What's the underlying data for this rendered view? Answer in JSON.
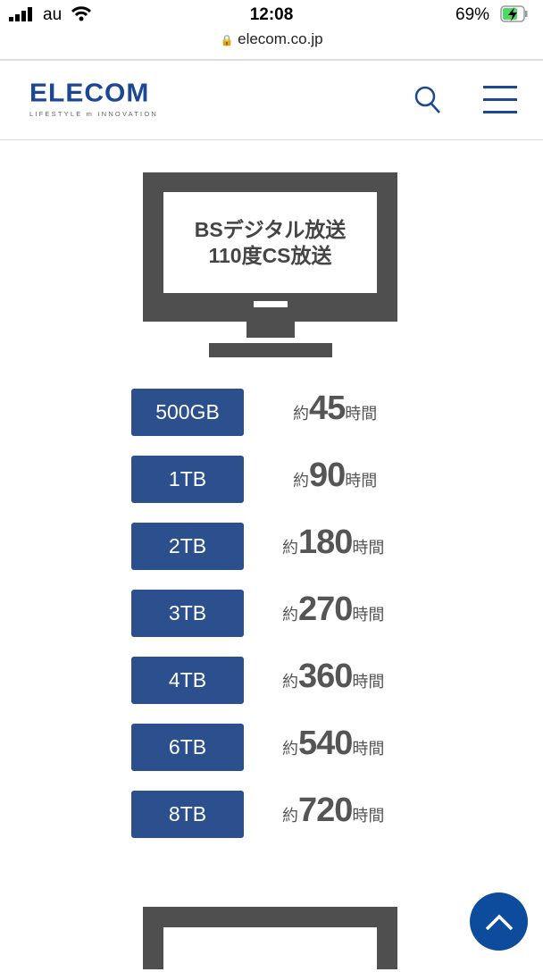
{
  "status_bar": {
    "carrier": "au",
    "time": "12:08",
    "battery": "69%"
  },
  "browser": {
    "url": "elecom.co.jp"
  },
  "header": {
    "logo": "ELECOM",
    "tagline": "LIFESTYLE m INNOVATION",
    "icons": [
      "search-icon",
      "menu-icon"
    ]
  },
  "tv": {
    "line1": "BSデジタル放送",
    "line2": "110度CS放送"
  },
  "capacities": [
    {
      "size": "500GB",
      "prefix": "約",
      "hours": "45",
      "unit": "時間"
    },
    {
      "size": "1TB",
      "prefix": "約",
      "hours": "90",
      "unit": "時間"
    },
    {
      "size": "2TB",
      "prefix": "約",
      "hours": "180",
      "unit": "時間"
    },
    {
      "size": "3TB",
      "prefix": "約",
      "hours": "270",
      "unit": "時間"
    },
    {
      "size": "4TB",
      "prefix": "約",
      "hours": "360",
      "unit": "時間"
    },
    {
      "size": "6TB",
      "prefix": "約",
      "hours": "540",
      "unit": "時間"
    },
    {
      "size": "8TB",
      "prefix": "約",
      "hours": "720",
      "unit": "時間"
    }
  ],
  "colors": {
    "brand": "#1b4794",
    "badge": "#2c4f8d",
    "tv": "#4f4f4f",
    "scroll_top": "#0d4b9c"
  }
}
